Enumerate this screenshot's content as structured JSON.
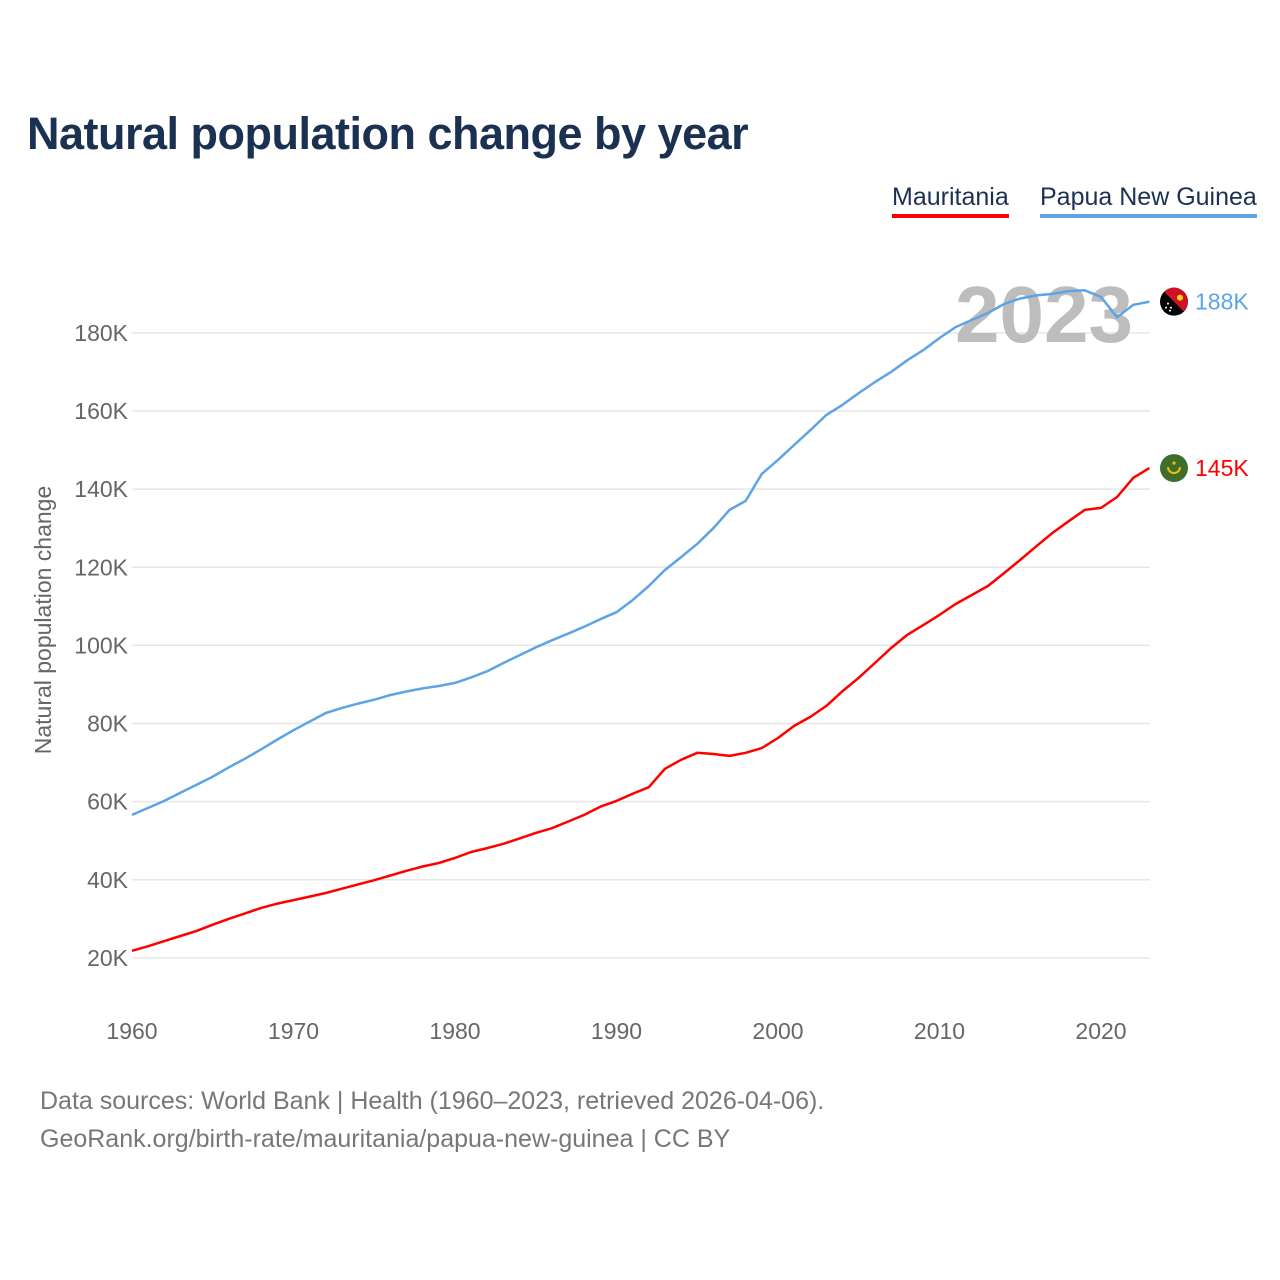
{
  "chart_data": {
    "type": "line",
    "title": "Natural population change by year",
    "xlabel": "",
    "ylabel": "Natural population change",
    "xlim": [
      1960,
      2023
    ],
    "ylim": [
      10000,
      195000
    ],
    "grid": true,
    "legend_placement": "top-right",
    "x_ticks": [
      1960,
      1970,
      1980,
      1990,
      2000,
      2010,
      2020
    ],
    "x_tick_labels": [
      "1960",
      "1970",
      "1980",
      "1990",
      "2000",
      "2010",
      "2020"
    ],
    "y_ticks": [
      20000,
      40000,
      60000,
      80000,
      100000,
      120000,
      140000,
      160000,
      180000
    ],
    "y_tick_labels": [
      "20K",
      "40K",
      "60K",
      "80K",
      "100K",
      "120K",
      "140K",
      "160K",
      "180K"
    ],
    "year_watermark": "2023",
    "x": [
      1960,
      1961,
      1962,
      1963,
      1964,
      1965,
      1966,
      1967,
      1968,
      1969,
      1970,
      1971,
      1972,
      1973,
      1974,
      1975,
      1976,
      1977,
      1978,
      1979,
      1980,
      1981,
      1982,
      1983,
      1984,
      1985,
      1986,
      1987,
      1988,
      1989,
      1990,
      1991,
      1992,
      1993,
      1994,
      1995,
      1996,
      1997,
      1998,
      1999,
      2000,
      2001,
      2002,
      2003,
      2004,
      2005,
      2006,
      2007,
      2008,
      2009,
      2010,
      2011,
      2012,
      2013,
      2014,
      2015,
      2016,
      2017,
      2018,
      2019,
      2020,
      2021,
      2022,
      2023
    ],
    "series": [
      {
        "name": "Mauritania",
        "color": "#ff0000",
        "end_label": "145K",
        "flag": "mauritania-flag",
        "values": [
          21800,
          23000,
          24300,
          25600,
          26900,
          28500,
          30000,
          31400,
          32800,
          33900,
          34800,
          35700,
          36600,
          37700,
          38800,
          39900,
          41100,
          42300,
          43400,
          44300,
          45600,
          47100,
          48100,
          49200,
          50600,
          52000,
          53200,
          54900,
          56600,
          58700,
          60200,
          62000,
          63700,
          68400,
          70700,
          72500,
          72200,
          71700,
          72500,
          73700,
          76300,
          79400,
          81700,
          84500,
          88300,
          91700,
          95500,
          99300,
          102700,
          105200,
          107800,
          110600,
          112900,
          115200,
          118500,
          121900,
          125400,
          128800,
          131800,
          134700,
          135200,
          138000,
          142900,
          145400
        ]
      },
      {
        "name": "Papua New Guinea",
        "color": "#5da4e6",
        "end_label": "188K",
        "flag": "papua-new-guinea-flag",
        "values": [
          56600,
          58400,
          60200,
          62300,
          64300,
          66400,
          68800,
          71000,
          73400,
          75900,
          78300,
          80500,
          82700,
          84000,
          85100,
          86100,
          87300,
          88200,
          89000,
          89600,
          90400,
          91800,
          93400,
          95500,
          97500,
          99500,
          101300,
          103000,
          104800,
          106700,
          108500,
          111600,
          115200,
          119300,
          122600,
          126000,
          130000,
          134700,
          137000,
          143900,
          147500,
          151300,
          155100,
          159000,
          161600,
          164600,
          167400,
          170000,
          173000,
          175600,
          178700,
          181500,
          183300,
          185100,
          187400,
          188800,
          189600,
          190000,
          190700,
          190900,
          189200,
          184000,
          187200,
          188000
        ]
      }
    ]
  },
  "footer": {
    "line1": "Data sources: World Bank | Health (1960–2023, retrieved 2026-04-06).",
    "line2": "GeoRank.org/birth-rate/mauritania/papua-new-guinea | CC BY"
  }
}
